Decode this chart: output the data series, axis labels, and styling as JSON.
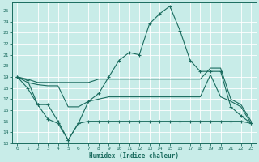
{
  "xlabel": "Humidex (Indice chaleur)",
  "bg_color": "#c8ece8",
  "grid_color": "#ffffff",
  "line_color": "#1a6b5e",
  "xlim": [
    -0.5,
    23.5
  ],
  "ylim": [
    13,
    25.7
  ],
  "yticks": [
    13,
    14,
    15,
    16,
    17,
    18,
    19,
    20,
    21,
    22,
    23,
    24,
    25
  ],
  "xticks": [
    0,
    1,
    2,
    3,
    4,
    5,
    6,
    7,
    8,
    9,
    10,
    11,
    12,
    13,
    14,
    15,
    16,
    17,
    18,
    19,
    20,
    21,
    22,
    23
  ],
  "line1_x": [
    0,
    1,
    2,
    3,
    4,
    5,
    6,
    7,
    8,
    9,
    10,
    11,
    12,
    13,
    14,
    15,
    16,
    17,
    18,
    19,
    20,
    21,
    22,
    23
  ],
  "line1_y": [
    19,
    18,
    16.5,
    15.2,
    14.8,
    13.3,
    14.8,
    16.8,
    17.5,
    19,
    20.5,
    21.2,
    21,
    23.8,
    24.7,
    25.4,
    23.2,
    20.5,
    19.5,
    19.5,
    19.5,
    16.3,
    15.5,
    14.8
  ],
  "line2_x": [
    0,
    1,
    2,
    3,
    4,
    5,
    6,
    7,
    8,
    9,
    10,
    11,
    12,
    13,
    14,
    15,
    16,
    17,
    18,
    19,
    20,
    21,
    22,
    23
  ],
  "line2_y": [
    19,
    18.5,
    18.3,
    18.2,
    18.2,
    16.3,
    16.3,
    16.8,
    17.0,
    17.2,
    17.2,
    17.2,
    17.2,
    17.2,
    17.2,
    17.2,
    17.2,
    17.2,
    17.2,
    19.2,
    17.2,
    16.8,
    16.3,
    14.8
  ],
  "line3_x": [
    0,
    1,
    2,
    3,
    4,
    5,
    6,
    7,
    8,
    9,
    10,
    11,
    12,
    13,
    14,
    15,
    16,
    17,
    18,
    19,
    20,
    21,
    22,
    23
  ],
  "line3_y": [
    19,
    18.8,
    18.5,
    18.5,
    18.5,
    18.5,
    18.5,
    18.5,
    18.8,
    18.8,
    18.8,
    18.8,
    18.8,
    18.8,
    18.8,
    18.8,
    18.8,
    18.8,
    18.8,
    19.8,
    19.8,
    17.0,
    16.5,
    15.0
  ],
  "line4_x": [
    0,
    1,
    2,
    3,
    4,
    5,
    6,
    7,
    8,
    9,
    10,
    11,
    12,
    13,
    14,
    15,
    16,
    17,
    18,
    19,
    20,
    21,
    22,
    23
  ],
  "line4_y": [
    19,
    18.7,
    16.5,
    16.5,
    15.0,
    13.3,
    14.8,
    15.0,
    15.0,
    15.0,
    15.0,
    15.0,
    15.0,
    15.0,
    15.0,
    15.0,
    15.0,
    15.0,
    15.0,
    15.0,
    15.0,
    15.0,
    15.0,
    14.8
  ]
}
